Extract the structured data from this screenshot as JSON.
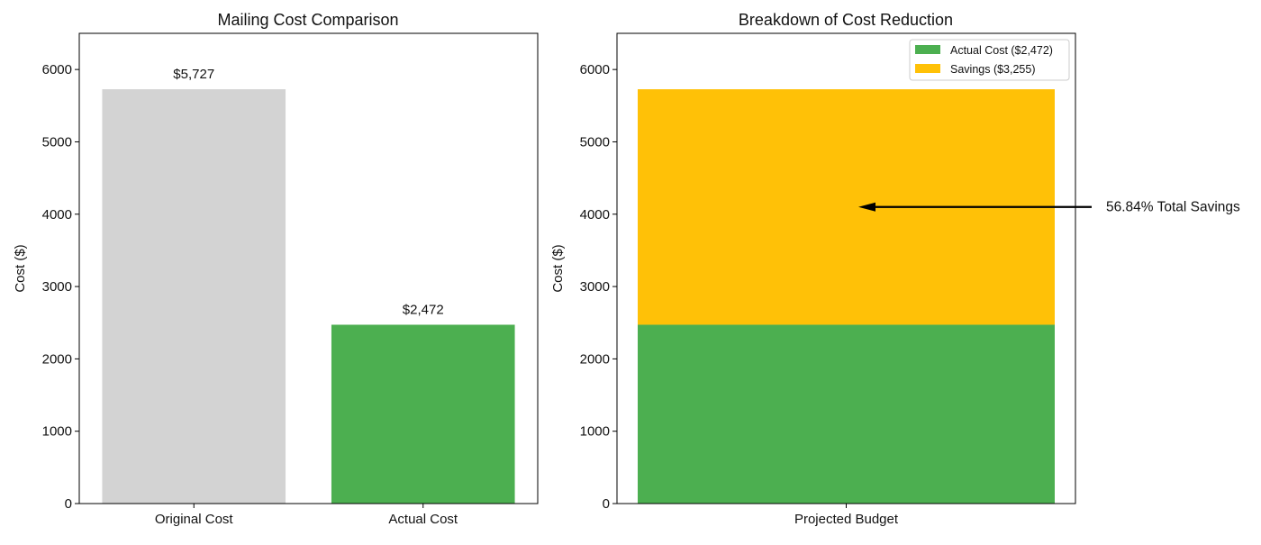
{
  "chart_data": [
    {
      "type": "bar",
      "title": "Mailing Cost Comparison",
      "xlabel": "",
      "ylabel": "Cost ($)",
      "ylim": [
        0,
        6500
      ],
      "yticks": [
        0,
        1000,
        2000,
        3000,
        4000,
        5000,
        6000
      ],
      "ytick_labels": [
        "0",
        "1000",
        "2000",
        "3000",
        "4000",
        "5000",
        "6000"
      ],
      "categories": [
        "Original Cost",
        "Actual Cost"
      ],
      "values": [
        5727,
        2472
      ],
      "colors": [
        "#d3d3d3",
        "#4caf50"
      ],
      "data_labels": [
        "$5,727",
        "$2,472"
      ],
      "grid": false
    },
    {
      "type": "bar",
      "stacked": true,
      "title": "Breakdown of Cost Reduction",
      "xlabel": "",
      "ylabel": "Cost ($)",
      "ylim": [
        0,
        6500
      ],
      "yticks": [
        0,
        1000,
        2000,
        3000,
        4000,
        5000,
        6000
      ],
      "ytick_labels": [
        "0",
        "1000",
        "2000",
        "3000",
        "4000",
        "5000",
        "6000"
      ],
      "categories": [
        "Projected Budget"
      ],
      "series": [
        {
          "name": "Actual Cost ($2,472)",
          "values": [
            2472
          ],
          "color": "#4caf50"
        },
        {
          "name": "Savings ($3,255)",
          "values": [
            3255
          ],
          "color": "#ffc107"
        }
      ],
      "legend_position": "top-right",
      "annotation": {
        "text": "56.84% Total Savings",
        "arrow_target_y": 4100
      },
      "grid": false
    }
  ]
}
